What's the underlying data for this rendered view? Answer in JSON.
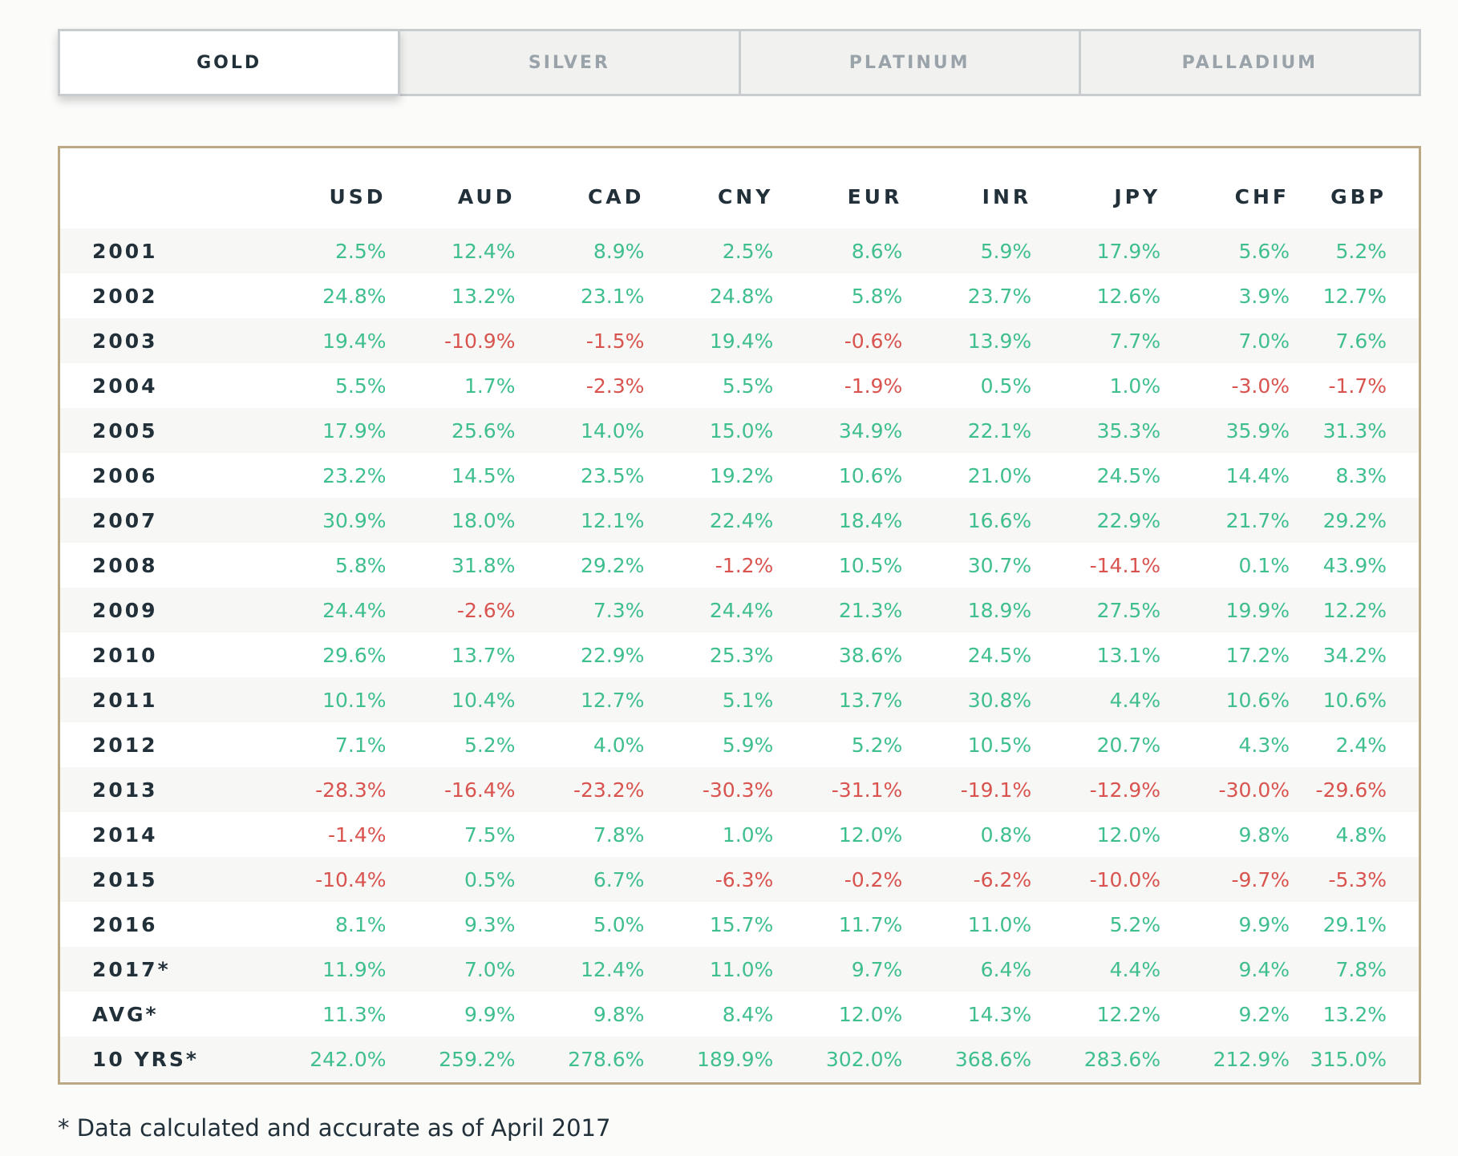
{
  "tabs": [
    "GOLD",
    "SILVER",
    "PLATINUM",
    "PALLADIUM"
  ],
  "active_tab": "GOLD",
  "colors": {
    "positive": "#3fbf8e",
    "negative": "#d9534f",
    "frame": "#bca883",
    "text": "#22303a"
  },
  "table": {
    "columns": [
      "USD",
      "AUD",
      "CAD",
      "CNY",
      "EUR",
      "INR",
      "JPY",
      "CHF",
      "GBP"
    ],
    "rows": [
      {
        "label": "2001",
        "values": [
          "2.5%",
          "12.4%",
          "8.9%",
          "2.5%",
          "8.6%",
          "5.9%",
          "17.9%",
          "5.6%",
          "5.2%"
        ]
      },
      {
        "label": "2002",
        "values": [
          "24.8%",
          "13.2%",
          "23.1%",
          "24.8%",
          "5.8%",
          "23.7%",
          "12.6%",
          "3.9%",
          "12.7%"
        ]
      },
      {
        "label": "2003",
        "values": [
          "19.4%",
          "-10.9%",
          "-1.5%",
          "19.4%",
          "-0.6%",
          "13.9%",
          "7.7%",
          "7.0%",
          "7.6%"
        ]
      },
      {
        "label": "2004",
        "values": [
          "5.5%",
          "1.7%",
          "-2.3%",
          "5.5%",
          "-1.9%",
          "0.5%",
          "1.0%",
          "-3.0%",
          "-1.7%"
        ]
      },
      {
        "label": "2005",
        "values": [
          "17.9%",
          "25.6%",
          "14.0%",
          "15.0%",
          "34.9%",
          "22.1%",
          "35.3%",
          "35.9%",
          "31.3%"
        ]
      },
      {
        "label": "2006",
        "values": [
          "23.2%",
          "14.5%",
          "23.5%",
          "19.2%",
          "10.6%",
          "21.0%",
          "24.5%",
          "14.4%",
          "8.3%"
        ]
      },
      {
        "label": "2007",
        "values": [
          "30.9%",
          "18.0%",
          "12.1%",
          "22.4%",
          "18.4%",
          "16.6%",
          "22.9%",
          "21.7%",
          "29.2%"
        ]
      },
      {
        "label": "2008",
        "values": [
          "5.8%",
          "31.8%",
          "29.2%",
          "-1.2%",
          "10.5%",
          "30.7%",
          "-14.1%",
          "0.1%",
          "43.9%"
        ]
      },
      {
        "label": "2009",
        "values": [
          "24.4%",
          "-2.6%",
          "7.3%",
          "24.4%",
          "21.3%",
          "18.9%",
          "27.5%",
          "19.9%",
          "12.2%"
        ]
      },
      {
        "label": "2010",
        "values": [
          "29.6%",
          "13.7%",
          "22.9%",
          "25.3%",
          "38.6%",
          "24.5%",
          "13.1%",
          "17.2%",
          "34.2%"
        ]
      },
      {
        "label": "2011",
        "values": [
          "10.1%",
          "10.4%",
          "12.7%",
          "5.1%",
          "13.7%",
          "30.8%",
          "4.4%",
          "10.6%",
          "10.6%"
        ]
      },
      {
        "label": "2012",
        "values": [
          "7.1%",
          "5.2%",
          "4.0%",
          "5.9%",
          "5.2%",
          "10.5%",
          "20.7%",
          "4.3%",
          "2.4%"
        ]
      },
      {
        "label": "2013",
        "values": [
          "-28.3%",
          "-16.4%",
          "-23.2%",
          "-30.3%",
          "-31.1%",
          "-19.1%",
          "-12.9%",
          "-30.0%",
          "-29.6%"
        ]
      },
      {
        "label": "2014",
        "values": [
          "-1.4%",
          "7.5%",
          "7.8%",
          "1.0%",
          "12.0%",
          "0.8%",
          "12.0%",
          "9.8%",
          "4.8%"
        ]
      },
      {
        "label": "2015",
        "values": [
          "-10.4%",
          "0.5%",
          "6.7%",
          "-6.3%",
          "-0.2%",
          "-6.2%",
          "-10.0%",
          "-9.7%",
          "-5.3%"
        ]
      },
      {
        "label": "2016",
        "values": [
          "8.1%",
          "9.3%",
          "5.0%",
          "15.7%",
          "11.7%",
          "11.0%",
          "5.2%",
          "9.9%",
          "29.1%"
        ]
      },
      {
        "label": "2017*",
        "values": [
          "11.9%",
          "7.0%",
          "12.4%",
          "11.0%",
          "9.7%",
          "6.4%",
          "4.4%",
          "9.4%",
          "7.8%"
        ]
      },
      {
        "label": "AVG*",
        "values": [
          "11.3%",
          "9.9%",
          "9.8%",
          "8.4%",
          "12.0%",
          "14.3%",
          "12.2%",
          "9.2%",
          "13.2%"
        ]
      },
      {
        "label": "10 YRS*",
        "values": [
          "242.0%",
          "259.2%",
          "278.6%",
          "189.9%",
          "302.0%",
          "368.6%",
          "283.6%",
          "212.9%",
          "315.0%"
        ]
      }
    ]
  },
  "footnote": "* Data calculated and accurate as of April 2017"
}
